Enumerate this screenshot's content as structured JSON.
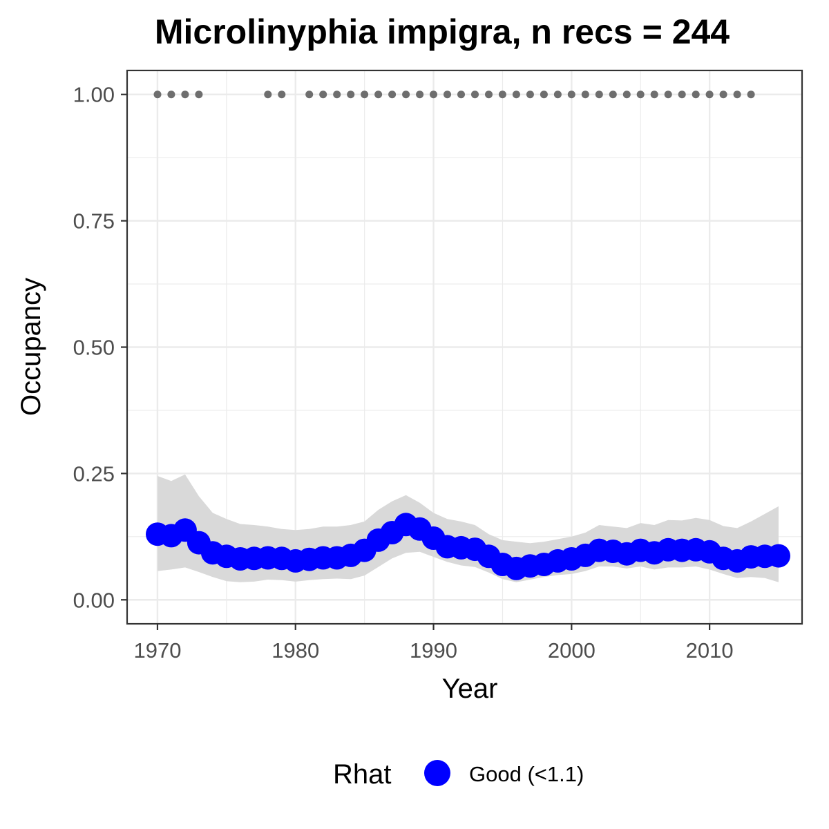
{
  "chart_data": {
    "type": "line",
    "title": "Microlinyphia impigra, n recs = 244",
    "xlabel": "Year",
    "ylabel": "Occupancy",
    "xlim": [
      1967.8,
      2016.7
    ],
    "ylim": [
      -0.0475,
      1.0475
    ],
    "x_ticks": [
      1970,
      1980,
      1990,
      2000,
      2010
    ],
    "x_tick_labels": [
      "1970",
      "1980",
      "1990",
      "2000",
      "2010"
    ],
    "y_ticks": [
      0,
      0.25,
      0.5,
      0.75,
      1.0
    ],
    "y_tick_labels": [
      "0.00",
      "0.25",
      "0.50",
      "0.75",
      "1.00"
    ],
    "grid": true,
    "legend": {
      "position": "bottom",
      "title": "Rhat",
      "entries": [
        {
          "label": "Good (<1.1)",
          "color": "#0000ff"
        }
      ]
    },
    "colors": {
      "estimate": "#0000ff",
      "ribbon": "#d9d9d9",
      "records": "#6e6e6e"
    },
    "series": [
      {
        "years": [
          1970,
          1971,
          1972,
          1973,
          1974,
          1975,
          1976,
          1977,
          1978,
          1979,
          1980,
          1981,
          1982,
          1983,
          1984,
          1985,
          1986,
          1987,
          1988,
          1989,
          1990,
          1991,
          1992,
          1993,
          1994,
          1995,
          1996,
          1997,
          1998,
          1999,
          2000,
          2001,
          2002,
          2003,
          2004,
          2005,
          2006,
          2007,
          2008,
          2009,
          2010,
          2011,
          2012,
          2013,
          2014,
          2015
        ],
        "occupancy": [
          0.13,
          0.127,
          0.138,
          0.113,
          0.093,
          0.086,
          0.081,
          0.082,
          0.083,
          0.082,
          0.077,
          0.08,
          0.083,
          0.083,
          0.088,
          0.098,
          0.118,
          0.133,
          0.149,
          0.14,
          0.122,
          0.105,
          0.103,
          0.1,
          0.086,
          0.07,
          0.062,
          0.067,
          0.07,
          0.077,
          0.081,
          0.088,
          0.098,
          0.096,
          0.091,
          0.098,
          0.093,
          0.099,
          0.098,
          0.099,
          0.095,
          0.082,
          0.077,
          0.085,
          0.086,
          0.087
        ],
        "lower": [
          0.057,
          0.06,
          0.064,
          0.055,
          0.045,
          0.037,
          0.035,
          0.036,
          0.04,
          0.039,
          0.036,
          0.039,
          0.041,
          0.042,
          0.041,
          0.048,
          0.065,
          0.082,
          0.093,
          0.095,
          0.085,
          0.075,
          0.068,
          0.065,
          0.054,
          0.041,
          0.035,
          0.04,
          0.045,
          0.049,
          0.051,
          0.057,
          0.066,
          0.066,
          0.062,
          0.066,
          0.06,
          0.064,
          0.064,
          0.066,
          0.06,
          0.051,
          0.043,
          0.045,
          0.043,
          0.035
        ],
        "upper": [
          0.245,
          0.235,
          0.248,
          0.205,
          0.172,
          0.16,
          0.15,
          0.148,
          0.145,
          0.14,
          0.138,
          0.14,
          0.145,
          0.145,
          0.148,
          0.155,
          0.178,
          0.195,
          0.207,
          0.192,
          0.172,
          0.16,
          0.155,
          0.148,
          0.13,
          0.118,
          0.115,
          0.112,
          0.115,
          0.12,
          0.125,
          0.133,
          0.148,
          0.145,
          0.142,
          0.152,
          0.148,
          0.158,
          0.157,
          0.162,
          0.158,
          0.146,
          0.142,
          0.155,
          0.17,
          0.185
        ]
      }
    ],
    "record_years": [
      1970,
      1971,
      1972,
      1973,
      1978,
      1979,
      1981,
      1982,
      1983,
      1984,
      1985,
      1986,
      1987,
      1988,
      1989,
      1990,
      1991,
      1992,
      1993,
      1994,
      1995,
      1996,
      1997,
      1998,
      1999,
      2000,
      2001,
      2002,
      2003,
      2004,
      2005,
      2006,
      2007,
      2008,
      2009,
      2010,
      2011,
      2012,
      2013
    ],
    "record_value": 1.0
  }
}
